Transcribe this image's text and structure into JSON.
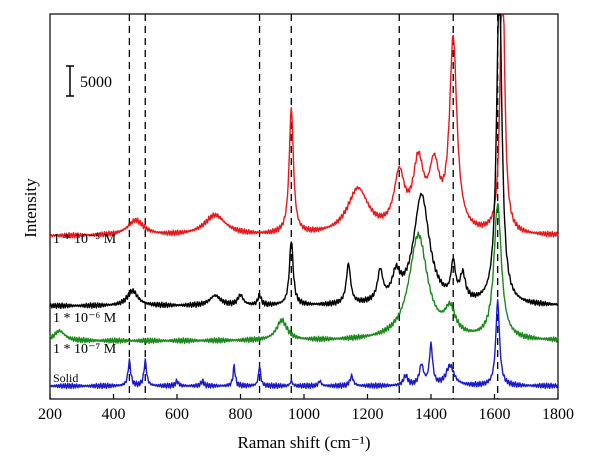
{
  "chart_data": {
    "type": "line",
    "title": "",
    "xlabel": "Raman shift (cm⁻¹)",
    "ylabel": "Intensity",
    "xlim": [
      200,
      1800
    ],
    "x_ticks": [
      "200",
      "400",
      "600",
      "800",
      "1000",
      "1200",
      "1400",
      "1600",
      "1800"
    ],
    "y_ticks": [],
    "scale_bar_label": "5000",
    "reference_lines_x": [
      450,
      500,
      860,
      960,
      1300,
      1470,
      1610
    ],
    "series": [
      {
        "name": "1 * 10⁻⁵ M",
        "color": "#e8191b",
        "baseline": 30,
        "peaks": [
          [
            470,
            3,
            30
          ],
          [
            720,
            4,
            40
          ],
          [
            960,
            25,
            8
          ],
          [
            1170,
            9,
            40
          ],
          [
            1300,
            11,
            20
          ],
          [
            1360,
            13,
            20
          ],
          [
            1410,
            12,
            20
          ],
          [
            1470,
            38,
            14
          ],
          [
            1625,
            58,
            8
          ]
        ]
      },
      {
        "name": "1 * 10⁻⁶ M",
        "color": "#000000",
        "baseline": 16,
        "peaks": [
          [
            460,
            3,
            20
          ],
          [
            720,
            2,
            20
          ],
          [
            800,
            2,
            10
          ],
          [
            860,
            2,
            6
          ],
          [
            960,
            13,
            7
          ],
          [
            1140,
            8,
            8
          ],
          [
            1240,
            6,
            10
          ],
          [
            1290,
            5,
            15
          ],
          [
            1370,
            22,
            30
          ],
          [
            1470,
            7,
            8
          ],
          [
            1500,
            5,
            10
          ],
          [
            1615,
            65,
            10
          ]
        ]
      },
      {
        "name": "1 * 10⁻⁷ M",
        "color": "#1a8a1a",
        "baseline": 9,
        "peaks": [
          [
            230,
            2,
            20
          ],
          [
            930,
            4,
            20
          ],
          [
            1360,
            21,
            35
          ],
          [
            1460,
            5,
            20
          ],
          [
            1610,
            27,
            14
          ]
        ]
      },
      {
        "name": "Solid",
        "color": "#1a1acc",
        "baseline": 0,
        "peaks": [
          [
            450,
            5,
            5
          ],
          [
            500,
            5,
            5
          ],
          [
            600,
            1,
            5
          ],
          [
            680,
            1,
            5
          ],
          [
            780,
            4,
            4
          ],
          [
            860,
            4,
            4
          ],
          [
            960,
            1,
            4
          ],
          [
            1050,
            1,
            5
          ],
          [
            1150,
            2,
            6
          ],
          [
            1320,
            2,
            8
          ],
          [
            1370,
            4,
            8
          ],
          [
            1400,
            8,
            6
          ],
          [
            1460,
            4,
            15
          ],
          [
            1610,
            17,
            7
          ]
        ]
      }
    ]
  }
}
